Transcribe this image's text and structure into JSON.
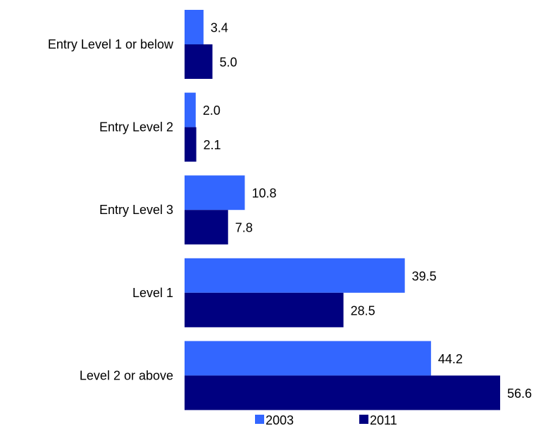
{
  "chart_data": {
    "type": "bar",
    "orientation": "horizontal",
    "categories": [
      "Entry Level 1 or below",
      "Entry Level 2",
      "Entry Level 3",
      "Level 1",
      "Level 2 or above"
    ],
    "series": [
      {
        "name": "2003",
        "color": "#3366ff",
        "values": [
          3.4,
          2.0,
          10.8,
          39.5,
          44.2
        ]
      },
      {
        "name": "2011",
        "color": "#000080",
        "values": [
          5.0,
          2.1,
          7.8,
          28.5,
          56.6
        ]
      }
    ],
    "xlim": [
      0,
      56.6
    ],
    "grid": false,
    "legend": "bottom"
  }
}
